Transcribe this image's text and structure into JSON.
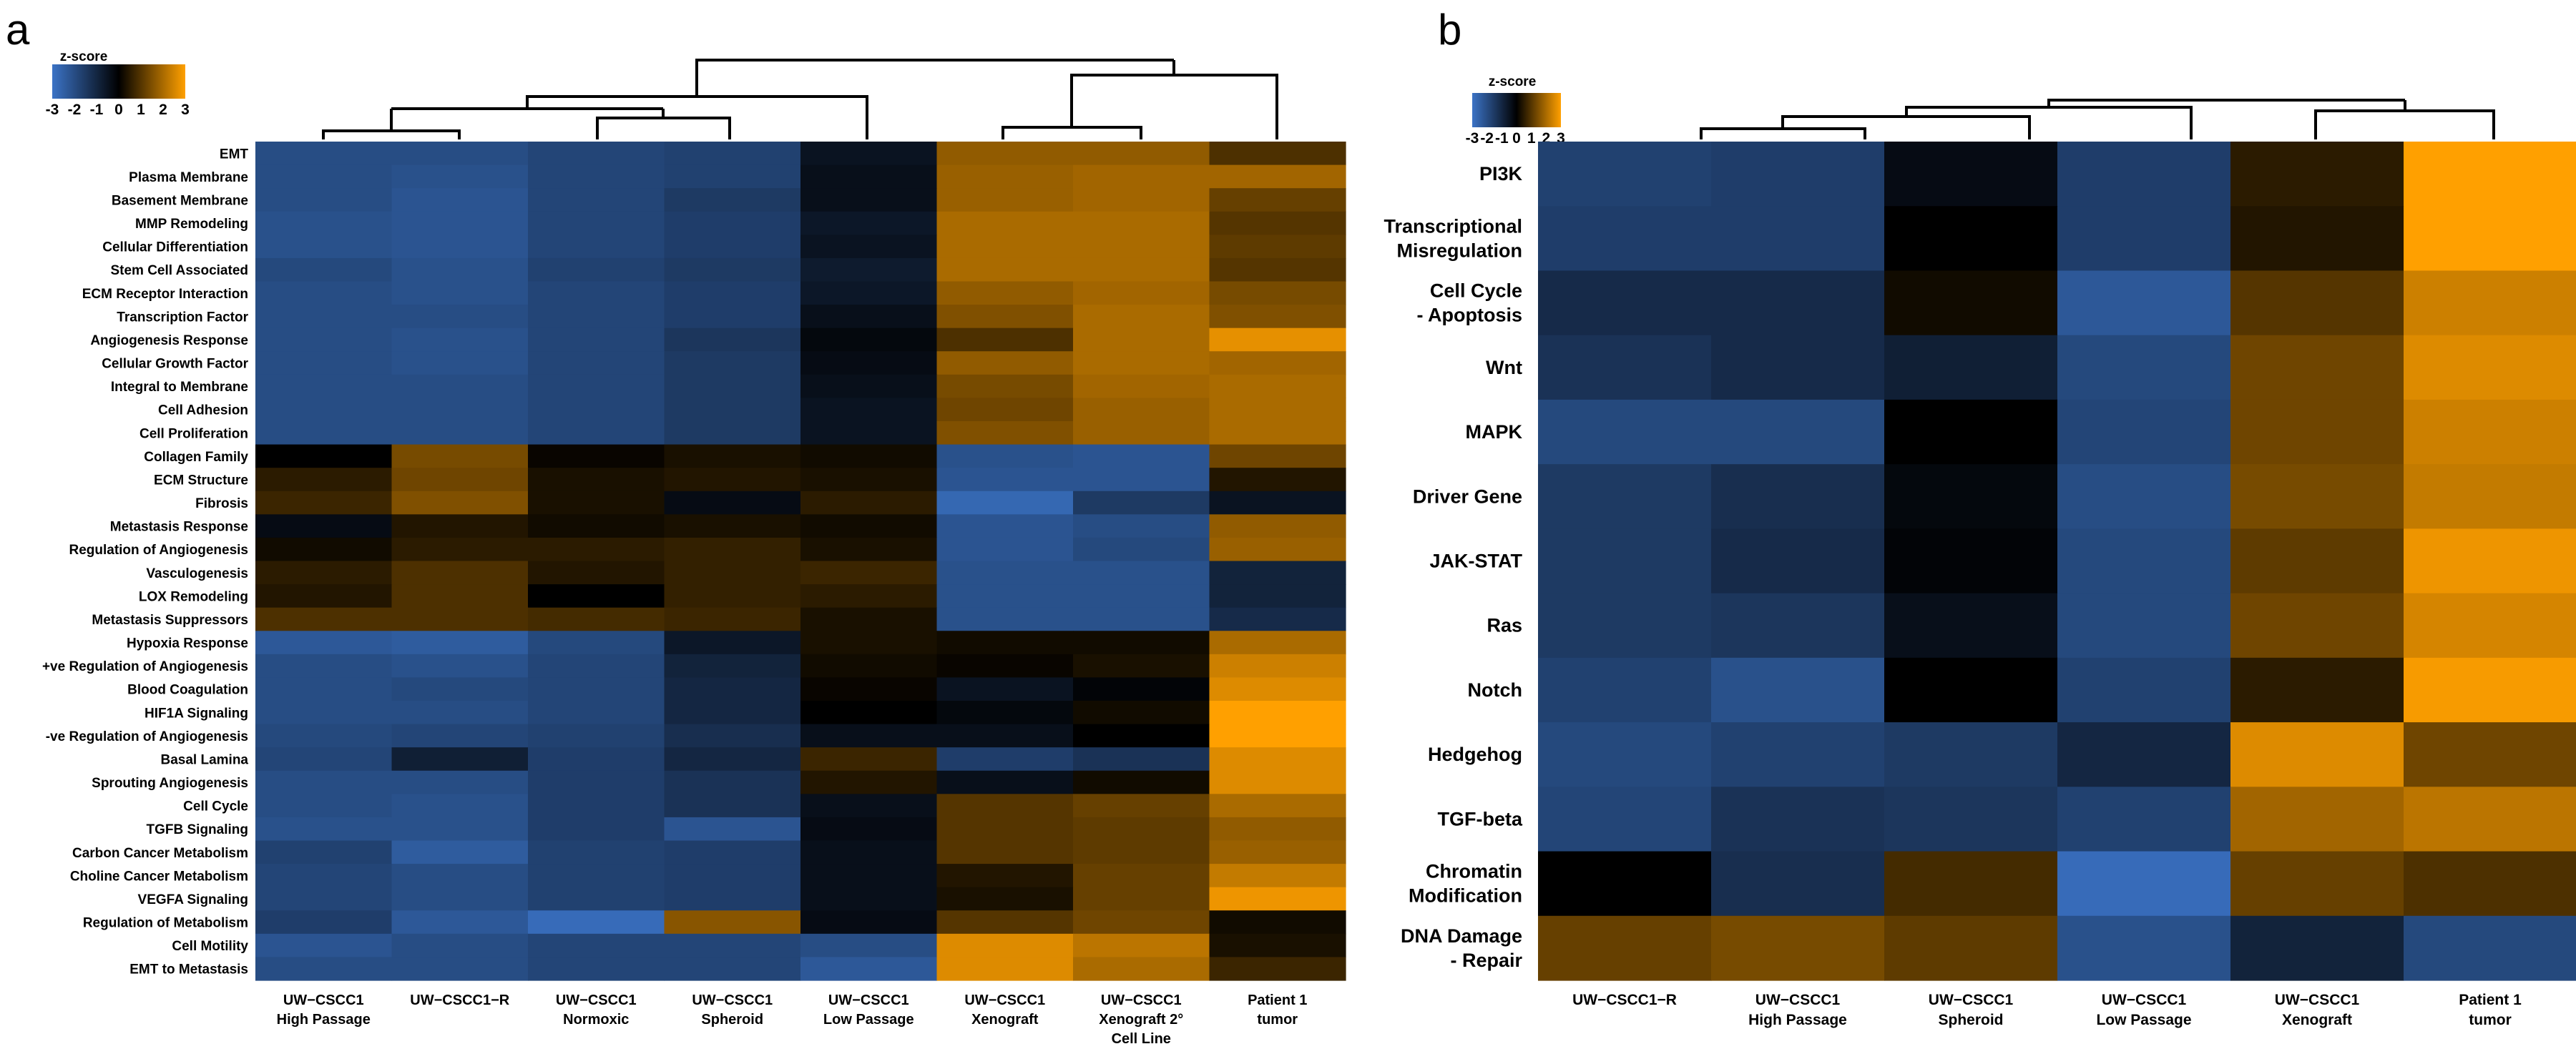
{
  "chart_data": [
    {
      "type": "heatmap",
      "panel_label": "a",
      "legend": {
        "title": "z-score",
        "ticks": [
          "-3",
          "-2",
          "-1",
          "0",
          "1",
          "2",
          "3"
        ],
        "range": [
          -3,
          3
        ],
        "low_color": "#3b73c6",
        "mid_color": "#000000",
        "high_color": "#ffa000"
      },
      "columns": [
        [
          "UW−CSCC1",
          "High Passage"
        ],
        [
          "UW−CSCC1−R"
        ],
        [
          "UW−CSCC1",
          "Normoxic"
        ],
        [
          "UW−CSCC1",
          "Spheroid"
        ],
        [
          "UW−CSCC1",
          "Low Passage"
        ],
        [
          "UW−CSCC1",
          "Xenograft"
        ],
        [
          "UW−CSCC1",
          "Xenograft 2°",
          "Cell Line"
        ],
        [
          "Patient 1",
          "tumor"
        ]
      ],
      "rows": [
        "EMT",
        "Plasma Membrane",
        "Basement Membrane",
        "MMP Remodeling",
        "Cellular Differentiation",
        "Stem Cell Associated",
        "ECM Receptor Interaction",
        "Transcription Factor",
        "Angiogenesis Response",
        "Cellular Growth Factor",
        "Integral to Membrane",
        "Cell Adhesion",
        "Cell Proliferation",
        "Collagen Family",
        "ECM Structure",
        "Fibrosis",
        "Metastasis Response",
        "Regulation of Angiogenesis",
        "Vasculogenesis",
        "LOX Remodeling",
        "Metastasis Suppressors",
        "Hypoxia Response",
        "+ve Regulation of Angiogenesis",
        "Blood Coagulation",
        "HIF1A Signaling",
        "-ve Regulation of Angiogenesis",
        "Basal Lamina",
        "Sprouting Angiogenesis",
        "Cell Cycle",
        "TGFB Signaling",
        "Carbon Cancer Metabolism",
        "Choline Cancer Metabolism",
        "VEGFA Signaling",
        "Regulation of Metabolism",
        "Cell Motility",
        "EMT to Metastasis"
      ],
      "values": [
        [
          -2.0,
          -2.0,
          -1.8,
          -1.7,
          -0.5,
          1.7,
          1.7,
          0.9
        ],
        [
          -2.0,
          -2.1,
          -1.8,
          -1.7,
          -0.4,
          1.8,
          1.9,
          1.9
        ],
        [
          -2.0,
          -2.2,
          -1.8,
          -1.5,
          -0.4,
          1.8,
          1.9,
          1.2
        ],
        [
          -2.1,
          -2.2,
          -1.8,
          -1.6,
          -0.6,
          2.0,
          2.0,
          1.0
        ],
        [
          -2.1,
          -2.2,
          -1.8,
          -1.6,
          -0.5,
          2.0,
          2.0,
          1.1
        ],
        [
          -1.9,
          -2.1,
          -1.7,
          -1.5,
          -0.7,
          2.0,
          2.0,
          1.0
        ],
        [
          -2.0,
          -2.1,
          -1.8,
          -1.6,
          -0.6,
          1.7,
          1.9,
          1.4
        ],
        [
          -2.0,
          -2.0,
          -1.8,
          -1.6,
          -0.4,
          1.5,
          2.0,
          1.5
        ],
        [
          -2.0,
          -2.1,
          -1.8,
          -1.4,
          -0.2,
          0.9,
          2.0,
          2.7
        ],
        [
          -2.0,
          -2.1,
          -1.8,
          -1.5,
          -0.3,
          1.7,
          2.0,
          1.9
        ],
        [
          -2.0,
          -2.0,
          -1.8,
          -1.5,
          -0.4,
          1.4,
          1.9,
          2.0
        ],
        [
          -2.0,
          -2.0,
          -1.8,
          -1.5,
          -0.5,
          1.3,
          1.8,
          2.0
        ],
        [
          -2.0,
          -2.0,
          -1.8,
          -1.5,
          -0.5,
          1.5,
          1.8,
          2.0
        ],
        [
          0.0,
          1.4,
          0.1,
          0.3,
          0.2,
          -2.1,
          -2.2,
          1.3
        ],
        [
          0.5,
          1.3,
          0.3,
          0.4,
          0.3,
          -2.2,
          -2.2,
          0.4
        ],
        [
          0.7,
          1.5,
          0.3,
          -0.3,
          0.5,
          -2.7,
          -1.5,
          -0.5
        ],
        [
          -0.3,
          0.4,
          0.2,
          0.3,
          0.2,
          -2.2,
          -2.0,
          1.7
        ],
        [
          0.2,
          0.5,
          0.5,
          0.6,
          0.3,
          -2.2,
          -1.9,
          1.8
        ],
        [
          0.5,
          0.9,
          0.4,
          0.6,
          0.7,
          -2.1,
          -2.1,
          -0.9
        ],
        [
          0.4,
          0.9,
          0.0,
          0.6,
          0.5,
          -2.1,
          -2.1,
          -0.9
        ],
        [
          0.9,
          0.9,
          0.8,
          0.7,
          0.3,
          -2.1,
          -2.1,
          -1.1
        ],
        [
          -2.3,
          -2.4,
          -1.9,
          -0.6,
          0.3,
          0.2,
          0.2,
          2.0
        ],
        [
          -2.0,
          -2.1,
          -1.8,
          -0.9,
          0.2,
          0.1,
          0.3,
          2.4
        ],
        [
          -2.0,
          -1.9,
          -1.8,
          -1.0,
          0.1,
          -0.5,
          -0.1,
          2.6
        ],
        [
          -2.0,
          -2.0,
          -1.8,
          -1.0,
          0.0,
          -0.2,
          0.2,
          3.0
        ],
        [
          -1.9,
          -1.8,
          -1.7,
          -1.2,
          -0.4,
          -0.4,
          0.0,
          3.0
        ],
        [
          -1.8,
          -0.8,
          -1.6,
          -1.0,
          0.7,
          -1.6,
          -1.3,
          2.6
        ],
        [
          -2.0,
          -2.0,
          -1.6,
          -1.3,
          0.4,
          -0.4,
          0.2,
          2.6
        ],
        [
          -2.0,
          -2.1,
          -1.6,
          -1.3,
          -0.4,
          1.0,
          1.2,
          2.0
        ],
        [
          -2.1,
          -2.1,
          -1.6,
          -2.2,
          -0.3,
          1.0,
          1.1,
          1.7
        ],
        [
          -1.7,
          -2.4,
          -1.7,
          -1.6,
          -0.4,
          1.0,
          1.1,
          1.8
        ],
        [
          -1.8,
          -2.0,
          -1.7,
          -1.6,
          -0.4,
          0.4,
          1.2,
          2.3
        ],
        [
          -1.8,
          -2.0,
          -1.7,
          -1.6,
          -0.4,
          0.3,
          1.2,
          2.8
        ],
        [
          -1.6,
          -2.3,
          -2.8,
          1.6,
          -0.3,
          1.0,
          1.3,
          0.2
        ],
        [
          -2.2,
          -2.0,
          -1.8,
          -1.8,
          -2.0,
          2.6,
          2.2,
          0.3
        ],
        [
          -2.0,
          -2.0,
          -1.8,
          -1.8,
          -2.3,
          2.6,
          2.0,
          0.7
        ]
      ]
    },
    {
      "type": "heatmap",
      "panel_label": "b",
      "legend": {
        "title": "z-score",
        "ticks": [
          "-3",
          "-2",
          "-1",
          "0",
          "1",
          "2",
          "3"
        ],
        "range": [
          -3,
          3
        ],
        "low_color": "#3b73c6",
        "mid_color": "#000000",
        "high_color": "#ffa000"
      },
      "columns": [
        [
          "UW−CSCC1−R"
        ],
        [
          "UW−CSCC1",
          "High Passage"
        ],
        [
          "UW−CSCC1",
          "Spheroid"
        ],
        [
          "UW−CSCC1",
          "Low Passage"
        ],
        [
          "UW−CSCC1",
          "Xenograft"
        ],
        [
          "Patient 1",
          "tumor"
        ]
      ],
      "rows": [
        [
          "PI3K"
        ],
        [
          "Transcriptional",
          "Misregulation"
        ],
        [
          "Cell Cycle",
          "- Apoptosis"
        ],
        [
          "Wnt"
        ],
        [
          "MAPK"
        ],
        [
          "Driver Gene"
        ],
        [
          "JAK-STAT"
        ],
        [
          "Ras"
        ],
        [
          "Notch"
        ],
        [
          "Hedgehog"
        ],
        [
          "TGF-beta"
        ],
        [
          "Chromatin",
          "Modification"
        ],
        [
          "DNA Damage",
          "- Repair"
        ]
      ],
      "values": [
        [
          -1.7,
          -1.6,
          -0.3,
          -1.6,
          0.5,
          3.0
        ],
        [
          -1.6,
          -1.6,
          0.0,
          -1.6,
          0.4,
          3.0
        ],
        [
          -1.1,
          -1.1,
          0.2,
          -2.3,
          1.0,
          2.4
        ],
        [
          -1.3,
          -1.1,
          -0.8,
          -1.9,
          1.3,
          2.6
        ],
        [
          -1.9,
          -1.9,
          0.0,
          -1.8,
          1.3,
          2.4
        ],
        [
          -1.5,
          -1.2,
          -0.2,
          -2.0,
          1.4,
          2.3
        ],
        [
          -1.5,
          -1.1,
          -0.1,
          -1.9,
          1.1,
          2.8
        ],
        [
          -1.5,
          -1.4,
          -0.4,
          -1.9,
          1.3,
          2.5
        ],
        [
          -1.7,
          -2.1,
          0.0,
          -1.7,
          0.5,
          2.9
        ],
        [
          -1.9,
          -1.7,
          -1.5,
          -1.0,
          2.6,
          1.3
        ],
        [
          -1.8,
          -1.3,
          -1.4,
          -1.7,
          1.9,
          2.2
        ],
        [
          0.0,
          -1.2,
          0.8,
          -2.8,
          1.2,
          0.9
        ],
        [
          1.2,
          1.4,
          1.1,
          -2.1,
          -0.9,
          -1.9
        ]
      ]
    }
  ]
}
